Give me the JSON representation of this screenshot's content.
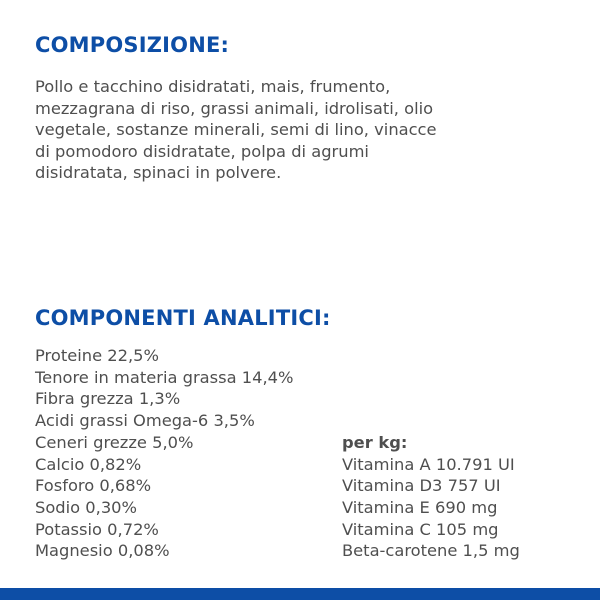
{
  "composition": {
    "title": "COMPOSIZIONE:",
    "lines": [
      "Pollo e tacchino disidratati, mais, frumento,",
      "mezzagrana di riso, grassi animali, idrolisati, olio",
      "vegetale, sostanze minerali, semi di lino, vinacce",
      "di pomodoro disidratate, polpa di agrumi",
      "disidratata, spinaci in polvere."
    ]
  },
  "analytics": {
    "title": "COMPONENTI ANALITICI:",
    "left": [
      "Proteine 22,5%",
      "Tenore in materia grassa 14,4%",
      "Fibra grezza 1,3%",
      "Acidi grassi Omega-6 3,5%",
      "Ceneri grezze 5,0%",
      "Calcio 0,82%",
      "Fosforo 0,68%",
      "Sodio 0,30%",
      "Potassio 0,72%",
      "Magnesio 0,08%"
    ],
    "per_kg_label": "per kg:",
    "right": [
      "Vitamina A 10.791 UI",
      "Vitamina D3 757 UI",
      "Vitamina E 690 mg",
      "Vitamina C 105 mg",
      "Beta-carotene 1,5 mg"
    ]
  },
  "colors": {
    "heading": "#0d4ea6",
    "text": "#4f4f4f",
    "footer_bar": "#0d4ea6"
  }
}
